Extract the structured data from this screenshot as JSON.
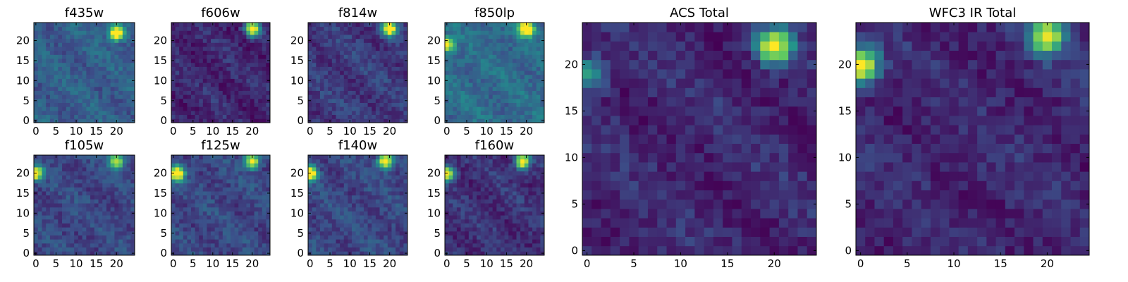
{
  "chart_data": [
    {
      "type": "heatmap",
      "title": "f435w",
      "xticks": [
        "0",
        "5",
        "10",
        "15",
        "20"
      ],
      "yticks": [
        "0",
        "5",
        "10",
        "15",
        "20"
      ],
      "grid": [
        25,
        25
      ],
      "peaks": [
        {
          "x": 20,
          "y": 22,
          "value": 1.0
        }
      ],
      "background": 0.3
    },
    {
      "type": "heatmap",
      "title": "f606w",
      "xticks": [
        "0",
        "5",
        "10",
        "15",
        "20"
      ],
      "yticks": [
        "0",
        "5",
        "10",
        "15",
        "20"
      ],
      "grid": [
        25,
        25
      ],
      "peaks": [
        {
          "x": 20,
          "y": 23,
          "value": 1.0
        }
      ],
      "background": 0.12
    },
    {
      "type": "heatmap",
      "title": "f814w",
      "xticks": [
        "0",
        "5",
        "10",
        "15",
        "20"
      ],
      "yticks": [
        "0",
        "5",
        "10",
        "15",
        "20"
      ],
      "grid": [
        25,
        25
      ],
      "peaks": [
        {
          "x": 20,
          "y": 23,
          "value": 1.0
        }
      ],
      "background": 0.18
    },
    {
      "type": "heatmap",
      "title": "f850lp",
      "xticks": [
        "0",
        "5",
        "10",
        "15",
        "20"
      ],
      "yticks": [
        "0",
        "5",
        "10",
        "15",
        "20"
      ],
      "grid": [
        25,
        25
      ],
      "peaks": [
        {
          "x": 20,
          "y": 23,
          "value": 1.0
        },
        {
          "x": 0,
          "y": 19,
          "value": 0.7
        }
      ],
      "background": 0.35
    },
    {
      "type": "heatmap",
      "title": "f105w",
      "xticks": [
        "0",
        "5",
        "10",
        "15",
        "20"
      ],
      "yticks": [
        "0",
        "5",
        "10",
        "15",
        "20"
      ],
      "grid": [
        25,
        25
      ],
      "peaks": [
        {
          "x": 0,
          "y": 20,
          "value": 0.9
        },
        {
          "x": 20,
          "y": 23,
          "value": 0.75
        }
      ],
      "background": 0.22
    },
    {
      "type": "heatmap",
      "title": "f125w",
      "xticks": [
        "0",
        "5",
        "10",
        "15",
        "20"
      ],
      "yticks": [
        "0",
        "5",
        "10",
        "15",
        "20"
      ],
      "grid": [
        25,
        25
      ],
      "peaks": [
        {
          "x": 1,
          "y": 20,
          "value": 1.0
        },
        {
          "x": 20,
          "y": 23,
          "value": 0.9
        }
      ],
      "background": 0.22
    },
    {
      "type": "heatmap",
      "title": "f140w",
      "xticks": [
        "0",
        "5",
        "10",
        "15",
        "20"
      ],
      "yticks": [
        "0",
        "5",
        "10",
        "15",
        "20"
      ],
      "grid": [
        25,
        25
      ],
      "peaks": [
        {
          "x": 0,
          "y": 20,
          "value": 1.0
        },
        {
          "x": 19,
          "y": 23,
          "value": 1.0
        }
      ],
      "background": 0.22
    },
    {
      "type": "heatmap",
      "title": "f160w",
      "xticks": [
        "0",
        "5",
        "10",
        "15",
        "20"
      ],
      "yticks": [
        "0",
        "5",
        "10",
        "15",
        "20"
      ],
      "grid": [
        25,
        25
      ],
      "peaks": [
        {
          "x": 0,
          "y": 20,
          "value": 1.0
        },
        {
          "x": 19,
          "y": 23,
          "value": 1.0
        }
      ],
      "background": 0.15
    },
    {
      "type": "heatmap",
      "title": "ACS Total",
      "xticks": [
        "0",
        "5",
        "10",
        "15",
        "20"
      ],
      "yticks": [
        "0",
        "5",
        "10",
        "15",
        "20"
      ],
      "grid": [
        25,
        25
      ],
      "peaks": [
        {
          "x": 20,
          "y": 22,
          "value": 1.0
        },
        {
          "x": 0,
          "y": 19,
          "value": 0.45
        }
      ],
      "background": 0.12
    },
    {
      "type": "heatmap",
      "title": "WFC3 IR Total",
      "xticks": [
        "0",
        "5",
        "10",
        "15",
        "20"
      ],
      "yticks": [
        "0",
        "5",
        "10",
        "15",
        "20"
      ],
      "grid": [
        25,
        25
      ],
      "peaks": [
        {
          "x": 0,
          "y": 20,
          "value": 1.0
        },
        {
          "x": 20,
          "y": 23,
          "value": 0.85
        }
      ],
      "background": 0.12
    }
  ]
}
